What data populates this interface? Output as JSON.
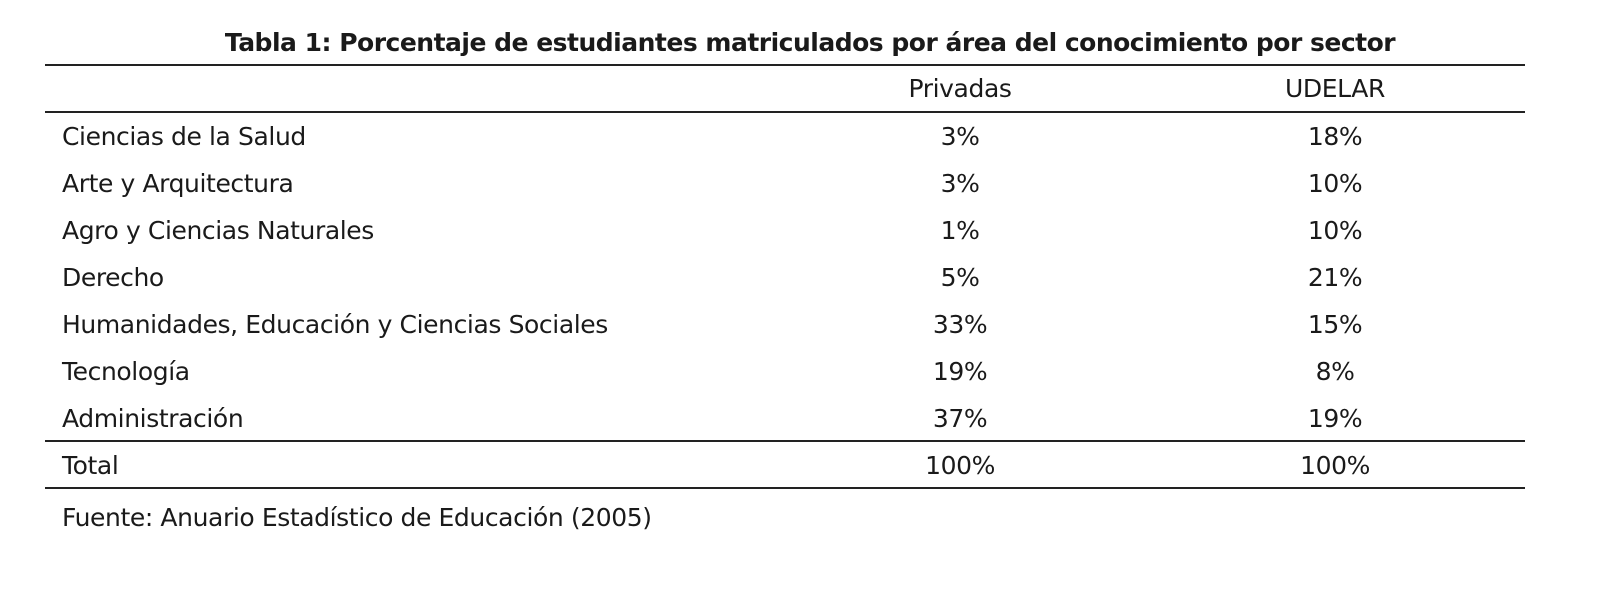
{
  "title": "Tabla 1: Porcentaje de estudiantes matriculados por área del conocimiento por sector",
  "columns": [
    "",
    "Privadas",
    "UDELAR"
  ],
  "rows": [
    {
      "label": "Ciencias de la Salud",
      "privadas": "3%",
      "udelar": "18%"
    },
    {
      "label": "Arte y Arquitectura",
      "privadas": "3%",
      "udelar": "10%"
    },
    {
      "label": "Agro y Ciencias Naturales",
      "privadas": "1%",
      "udelar": "10%"
    },
    {
      "label": "Derecho",
      "privadas": "5%",
      "udelar": "21%"
    },
    {
      "label": "Humanidades, Educación y Ciencias Sociales",
      "privadas": "33%",
      "udelar": "15%"
    },
    {
      "label": "Tecnología",
      "privadas": "19%",
      "udelar": "8%"
    },
    {
      "label": "Administración",
      "privadas": "37%",
      "udelar": "19%"
    }
  ],
  "total": {
    "label": "Total",
    "privadas": "100%",
    "udelar": "100%"
  },
  "source": "Fuente: Anuario Estadístico de Educación (2005)"
}
